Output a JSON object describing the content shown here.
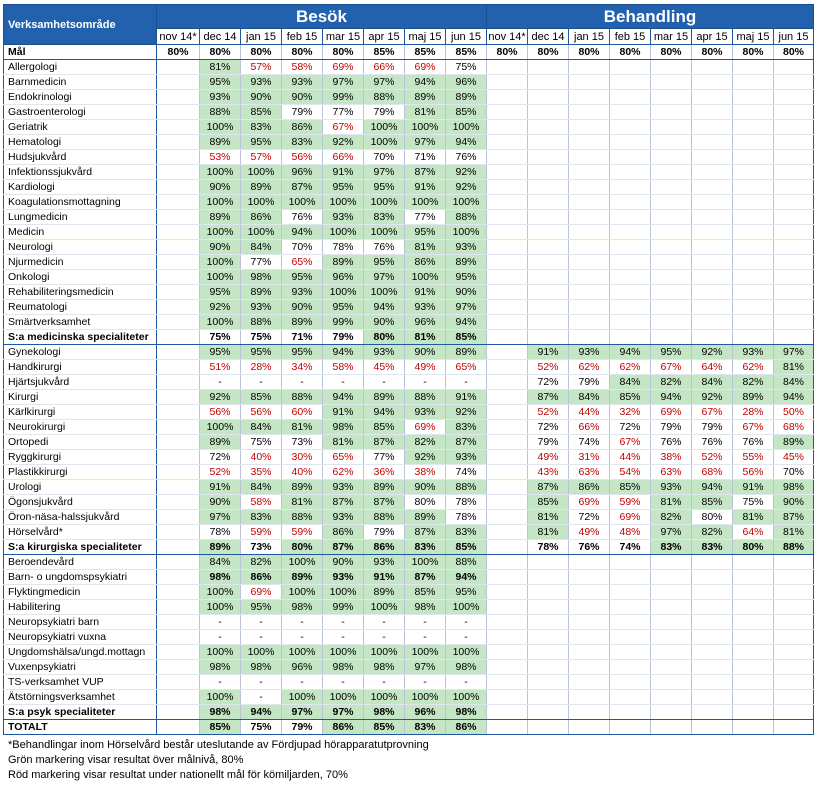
{
  "header": {
    "area_label": "Verksamhetsområde",
    "groups": [
      "Besök",
      "Behandling"
    ],
    "months": [
      "nov 14*",
      "dec 14",
      "jan 15",
      "feb 15",
      "mar 15",
      "apr 15",
      "maj 15",
      "jun 15"
    ]
  },
  "goal": {
    "label": "Mål",
    "besok": [
      "80%",
      "80%",
      "80%",
      "80%",
      "80%",
      "85%",
      "85%",
      "85%"
    ],
    "behandling": [
      "80%",
      "80%",
      "80%",
      "80%",
      "80%",
      "80%",
      "80%",
      "80%"
    ]
  },
  "sections": [
    {
      "rows": [
        {
          "label": "Allergologi",
          "besok": [
            "",
            "81%",
            "57%",
            "58%",
            "69%",
            "66%",
            "69%",
            "75%"
          ],
          "behandling": []
        },
        {
          "label": "Barnmedicin",
          "besok": [
            "",
            "95%",
            "93%",
            "93%",
            "97%",
            "97%",
            "94%",
            "96%"
          ],
          "behandling": []
        },
        {
          "label": "Endokrinologi",
          "besok": [
            "",
            "93%",
            "90%",
            "90%",
            "99%",
            "88%",
            "89%",
            "89%"
          ],
          "behandling": []
        },
        {
          "label": "Gastroenterologi",
          "besok": [
            "",
            "88%",
            "85%",
            "79%",
            "77%",
            "79%",
            "81%",
            "85%"
          ],
          "behandling": []
        },
        {
          "label": "Geriatrik",
          "besok": [
            "",
            "100%",
            "83%",
            "86%",
            "67%",
            "100%",
            "100%",
            "100%"
          ],
          "behandling": []
        },
        {
          "label": "Hematologi",
          "besok": [
            "",
            "89%",
            "95%",
            "83%",
            "92%",
            "100%",
            "97%",
            "94%"
          ],
          "behandling": []
        },
        {
          "label": "Hudsjukvård",
          "besok": [
            "",
            "53%",
            "57%",
            "56%",
            "66%",
            "70%",
            "71%",
            "76%"
          ],
          "behandling": []
        },
        {
          "label": "Infektionssjukvård",
          "besok": [
            "",
            "100%",
            "100%",
            "96%",
            "91%",
            "97%",
            "87%",
            "92%"
          ],
          "behandling": []
        },
        {
          "label": "Kardiologi",
          "besok": [
            "",
            "90%",
            "89%",
            "87%",
            "95%",
            "95%",
            "91%",
            "92%"
          ],
          "behandling": []
        },
        {
          "label": "Koagulationsmottagning",
          "besok": [
            "",
            "100%",
            "100%",
            "100%",
            "100%",
            "100%",
            "100%",
            "100%"
          ],
          "behandling": []
        },
        {
          "label": "Lungmedicin",
          "besok": [
            "",
            "89%",
            "86%",
            "76%",
            "93%",
            "83%",
            "77%",
            "88%"
          ],
          "behandling": []
        },
        {
          "label": "Medicin",
          "besok": [
            "",
            "100%",
            "100%",
            "94%",
            "100%",
            "100%",
            "95%",
            "100%"
          ],
          "behandling": []
        },
        {
          "label": "Neurologi",
          "besok": [
            "",
            "90%",
            "84%",
            "70%",
            "78%",
            "76%",
            "81%",
            "93%"
          ],
          "behandling": []
        },
        {
          "label": "Njurmedicin",
          "besok": [
            "",
            "100%",
            "77%",
            "65%",
            "89%",
            "95%",
            "86%",
            "89%"
          ],
          "behandling": []
        },
        {
          "label": "Onkologi",
          "besok": [
            "",
            "100%",
            "98%",
            "95%",
            "96%",
            "97%",
            "100%",
            "95%"
          ],
          "behandling": []
        },
        {
          "label": "Rehabiliteringsmedicin",
          "besok": [
            "",
            "95%",
            "89%",
            "93%",
            "100%",
            "100%",
            "91%",
            "90%"
          ],
          "behandling": []
        },
        {
          "label": "Reumatologi",
          "besok": [
            "",
            "92%",
            "93%",
            "90%",
            "95%",
            "94%",
            "93%",
            "97%"
          ],
          "behandling": []
        },
        {
          "label": "Smärtverksamhet",
          "besok": [
            "",
            "100%",
            "88%",
            "89%",
            "99%",
            "90%",
            "96%",
            "94%"
          ],
          "behandling": []
        },
        {
          "label": "S:a medicinska specialiteter",
          "total": true,
          "besok": [
            "",
            "75%",
            "75%",
            "71%",
            "79%",
            "80%",
            "81%",
            "85%"
          ],
          "behandling": []
        }
      ]
    },
    {
      "rows": [
        {
          "label": "Gynekologi",
          "besok": [
            "",
            "95%",
            "95%",
            "95%",
            "94%",
            "93%",
            "90%",
            "89%"
          ],
          "behandling": [
            "",
            "91%",
            "93%",
            "94%",
            "95%",
            "92%",
            "93%",
            "97%"
          ]
        },
        {
          "label": "Handkirurgi",
          "besok": [
            "",
            "51%",
            "28%",
            "34%",
            "58%",
            "45%",
            "49%",
            "65%"
          ],
          "behandling": [
            "",
            "52%",
            "62%",
            "62%",
            "67%",
            "64%",
            "62%",
            "81%"
          ]
        },
        {
          "label": "Hjärtsjukvård",
          "besok": [
            "",
            "-",
            "-",
            "-",
            "-",
            "-",
            "-",
            "-"
          ],
          "behandling": [
            "",
            "72%",
            "79%",
            "84%",
            "82%",
            "84%",
            "82%",
            "84%"
          ]
        },
        {
          "label": "Kirurgi",
          "besok": [
            "",
            "92%",
            "85%",
            "88%",
            "94%",
            "89%",
            "88%",
            "91%"
          ],
          "behandling": [
            "",
            "87%",
            "84%",
            "85%",
            "94%",
            "92%",
            "89%",
            "94%"
          ]
        },
        {
          "label": "Kärlkirurgi",
          "besok": [
            "",
            "56%",
            "56%",
            "60%",
            "91%",
            "94%",
            "93%",
            "92%"
          ],
          "behandling": [
            "",
            "52%",
            "44%",
            "32%",
            "69%",
            "67%",
            "28%",
            "50%"
          ]
        },
        {
          "label": "Neurokirurgi",
          "besok": [
            "",
            "100%",
            "84%",
            "81%",
            "98%",
            "85%",
            "69%",
            "83%"
          ],
          "behandling": [
            "",
            "72%",
            "66%",
            "72%",
            "79%",
            "79%",
            "67%",
            "68%"
          ]
        },
        {
          "label": "Ortopedi",
          "besok": [
            "",
            "89%",
            "75%",
            "73%",
            "81%",
            "87%",
            "82%",
            "87%"
          ],
          "behandling": [
            "",
            "79%",
            "74%",
            "67%",
            "76%",
            "76%",
            "76%",
            "89%"
          ]
        },
        {
          "label": "Ryggkirurgi",
          "besok": [
            "",
            "72%",
            "40%",
            "30%",
            "65%",
            "77%",
            "92%",
            "93%"
          ],
          "behandling": [
            "",
            "49%",
            "31%",
            "44%",
            "38%",
            "52%",
            "55%",
            "45%"
          ]
        },
        {
          "label": "Plastikkirurgi",
          "besok": [
            "",
            "52%",
            "35%",
            "40%",
            "62%",
            "36%",
            "38%",
            "74%"
          ],
          "behandling": [
            "",
            "43%",
            "63%",
            "54%",
            "63%",
            "68%",
            "56%",
            "70%"
          ]
        },
        {
          "label": "Urologi",
          "besok": [
            "",
            "91%",
            "84%",
            "89%",
            "93%",
            "89%",
            "90%",
            "88%"
          ],
          "behandling": [
            "",
            "87%",
            "86%",
            "85%",
            "93%",
            "94%",
            "91%",
            "98%"
          ]
        },
        {
          "label": "Ögonsjukvård",
          "besok": [
            "",
            "90%",
            "58%",
            "81%",
            "87%",
            "87%",
            "80%",
            "78%"
          ],
          "behandling": [
            "",
            "85%",
            "69%",
            "59%",
            "81%",
            "85%",
            "75%",
            "90%"
          ]
        },
        {
          "label": "Öron-näsa-halssjukvård",
          "besok": [
            "",
            "97%",
            "83%",
            "88%",
            "93%",
            "88%",
            "89%",
            "78%"
          ],
          "behandling": [
            "",
            "81%",
            "72%",
            "69%",
            "82%",
            "80%",
            "81%",
            "87%"
          ]
        },
        {
          "label": "Hörselvård*",
          "besok": [
            "",
            "78%",
            "59%",
            "59%",
            "86%",
            "79%",
            "87%",
            "83%"
          ],
          "behandling": [
            "",
            "81%",
            "49%",
            "48%",
            "97%",
            "82%",
            "64%",
            "81%"
          ]
        },
        {
          "label": "S:a kirurgiska specialiteter",
          "total": true,
          "besok": [
            "",
            "89%",
            "73%",
            "80%",
            "87%",
            "86%",
            "83%",
            "85%"
          ],
          "behandling": [
            "",
            "78%",
            "76%",
            "74%",
            "83%",
            "83%",
            "80%",
            "88%"
          ]
        }
      ]
    },
    {
      "rows": [
        {
          "label": "Beroendevård",
          "besok": [
            "",
            "84%",
            "82%",
            "100%",
            "90%",
            "93%",
            "100%",
            "88%"
          ],
          "behandling": []
        },
        {
          "label": "Barn- o ungdomspsykiatri",
          "besok": [
            "",
            "98%",
            "86%",
            "89%",
            "93%",
            "91%",
            "87%",
            "94%"
          ],
          "behandling": []
        },
        {
          "label": "Flyktingmedicin",
          "besok": [
            "",
            "100%",
            "69%",
            "100%",
            "100%",
            "89%",
            "85%",
            "95%"
          ],
          "behandling": []
        },
        {
          "label": "Habilitering",
          "besok": [
            "",
            "100%",
            "95%",
            "98%",
            "99%",
            "100%",
            "98%",
            "100%"
          ],
          "behandling": []
        },
        {
          "label": "Neuropsykiatri barn",
          "besok": [
            "",
            "-",
            "-",
            "-",
            "-",
            "-",
            "-",
            "-"
          ],
          "behandling": []
        },
        {
          "label": "Neuropsykiatri vuxna",
          "besok": [
            "",
            "-",
            "-",
            "-",
            "-",
            "-",
            "-",
            "-"
          ],
          "behandling": []
        },
        {
          "label": "Ungdomshälsa/ungd.mottagn",
          "besok": [
            "",
            "100%",
            "100%",
            "100%",
            "100%",
            "100%",
            "100%",
            "100%"
          ],
          "behandling": []
        },
        {
          "label": "Vuxenpsykiatri",
          "besok": [
            "",
            "98%",
            "98%",
            "96%",
            "98%",
            "98%",
            "97%",
            "98%"
          ],
          "behandling": []
        },
        {
          "label": "TS-verksamhet VUP",
          "besok": [
            "",
            "-",
            "-",
            "-",
            "-",
            "-",
            "-",
            "-"
          ],
          "behandling": []
        },
        {
          "label": "Ätstörningsverksamhet",
          "besok": [
            "",
            "100%",
            "-",
            "100%",
            "100%",
            "100%",
            "100%",
            "100%"
          ],
          "behandling": []
        },
        {
          "label": "S:a psyk specialiteter",
          "total": true,
          "besok": [
            "",
            "98%",
            "94%",
            "97%",
            "97%",
            "98%",
            "96%",
            "98%"
          ],
          "behandling": []
        }
      ]
    }
  ],
  "grand_total": {
    "label": "TOTALT",
    "besok": [
      "",
      "85%",
      "75%",
      "79%",
      "86%",
      "85%",
      "83%",
      "86%"
    ],
    "behandling": []
  },
  "notes": [
    "*Behandlingar inom Hörselvård består uteslutande av Fördjupad hörapparatutprovning",
    "Grön markering visar resultat över målnivå, 80%",
    "Röd markering visar resultat under nationellt mål för kömiljarden, 70%"
  ],
  "colors": {
    "header_blue": "#2161ad",
    "green_fill": "#c5e6c4",
    "red_text": "#c00000"
  }
}
